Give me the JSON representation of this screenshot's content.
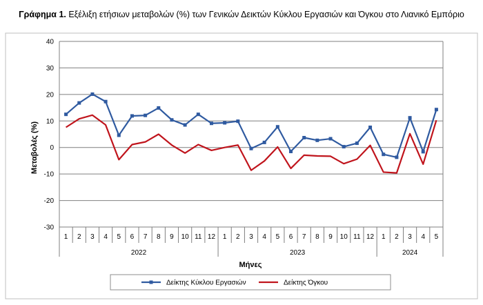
{
  "title": {
    "prefix": "Γράφημα 1.",
    "text": " Εξέλιξη ετήσιων μεταβολών (%) των Γενικών Δεικτών Κύκλου Εργασιών και Όγκου στο Λιανικό Εμπόριο"
  },
  "chart_data": {
    "type": "line",
    "xlabel": "Μήνες",
    "ylabel": "Μεταβολές  (%)",
    "ylim": [
      -30,
      40
    ],
    "yticks": [
      -30,
      -20,
      -10,
      0,
      10,
      20,
      30,
      40
    ],
    "grid": "horizontal",
    "legend_position": "bottom",
    "categories": [
      "1",
      "2",
      "3",
      "4",
      "5",
      "6",
      "7",
      "8",
      "9",
      "10",
      "11",
      "12",
      "1",
      "2",
      "3",
      "4",
      "5",
      "6",
      "7",
      "8",
      "9",
      "10",
      "11",
      "12",
      "1",
      "2",
      "3",
      "4",
      "5"
    ],
    "year_groups": [
      {
        "label": "2022",
        "start": 0,
        "count": 12
      },
      {
        "label": "2023",
        "start": 12,
        "count": 12
      },
      {
        "label": "2024",
        "start": 24,
        "count": 5
      }
    ],
    "series": [
      {
        "name": "Δείκτης Κύκλου Εργασιών",
        "color": "#2f5aa0",
        "marker": "square",
        "values": [
          12.5,
          16.8,
          20.1,
          17.3,
          4.6,
          11.9,
          12.1,
          14.9,
          10.4,
          8.5,
          12.5,
          9.1,
          9.3,
          9.9,
          -0.4,
          1.9,
          7.8,
          -1.5,
          3.7,
          2.7,
          3.3,
          0.3,
          1.6,
          7.6,
          -2.6,
          -3.7,
          11.2,
          -1.6,
          14.3
        ]
      },
      {
        "name": "Δείκτης Όγκου",
        "color": "#c0141c",
        "marker": "none",
        "values": [
          7.6,
          10.8,
          12.2,
          8.5,
          -4.6,
          1.1,
          2.1,
          5.0,
          0.9,
          -2.1,
          1.1,
          -1.1,
          0.0,
          0.9,
          -8.6,
          -5.1,
          0.2,
          -7.9,
          -2.9,
          -3.2,
          -3.3,
          -6.1,
          -4.4,
          0.8,
          -9.3,
          -9.6,
          5.2,
          -6.3,
          10.3
        ]
      }
    ]
  }
}
